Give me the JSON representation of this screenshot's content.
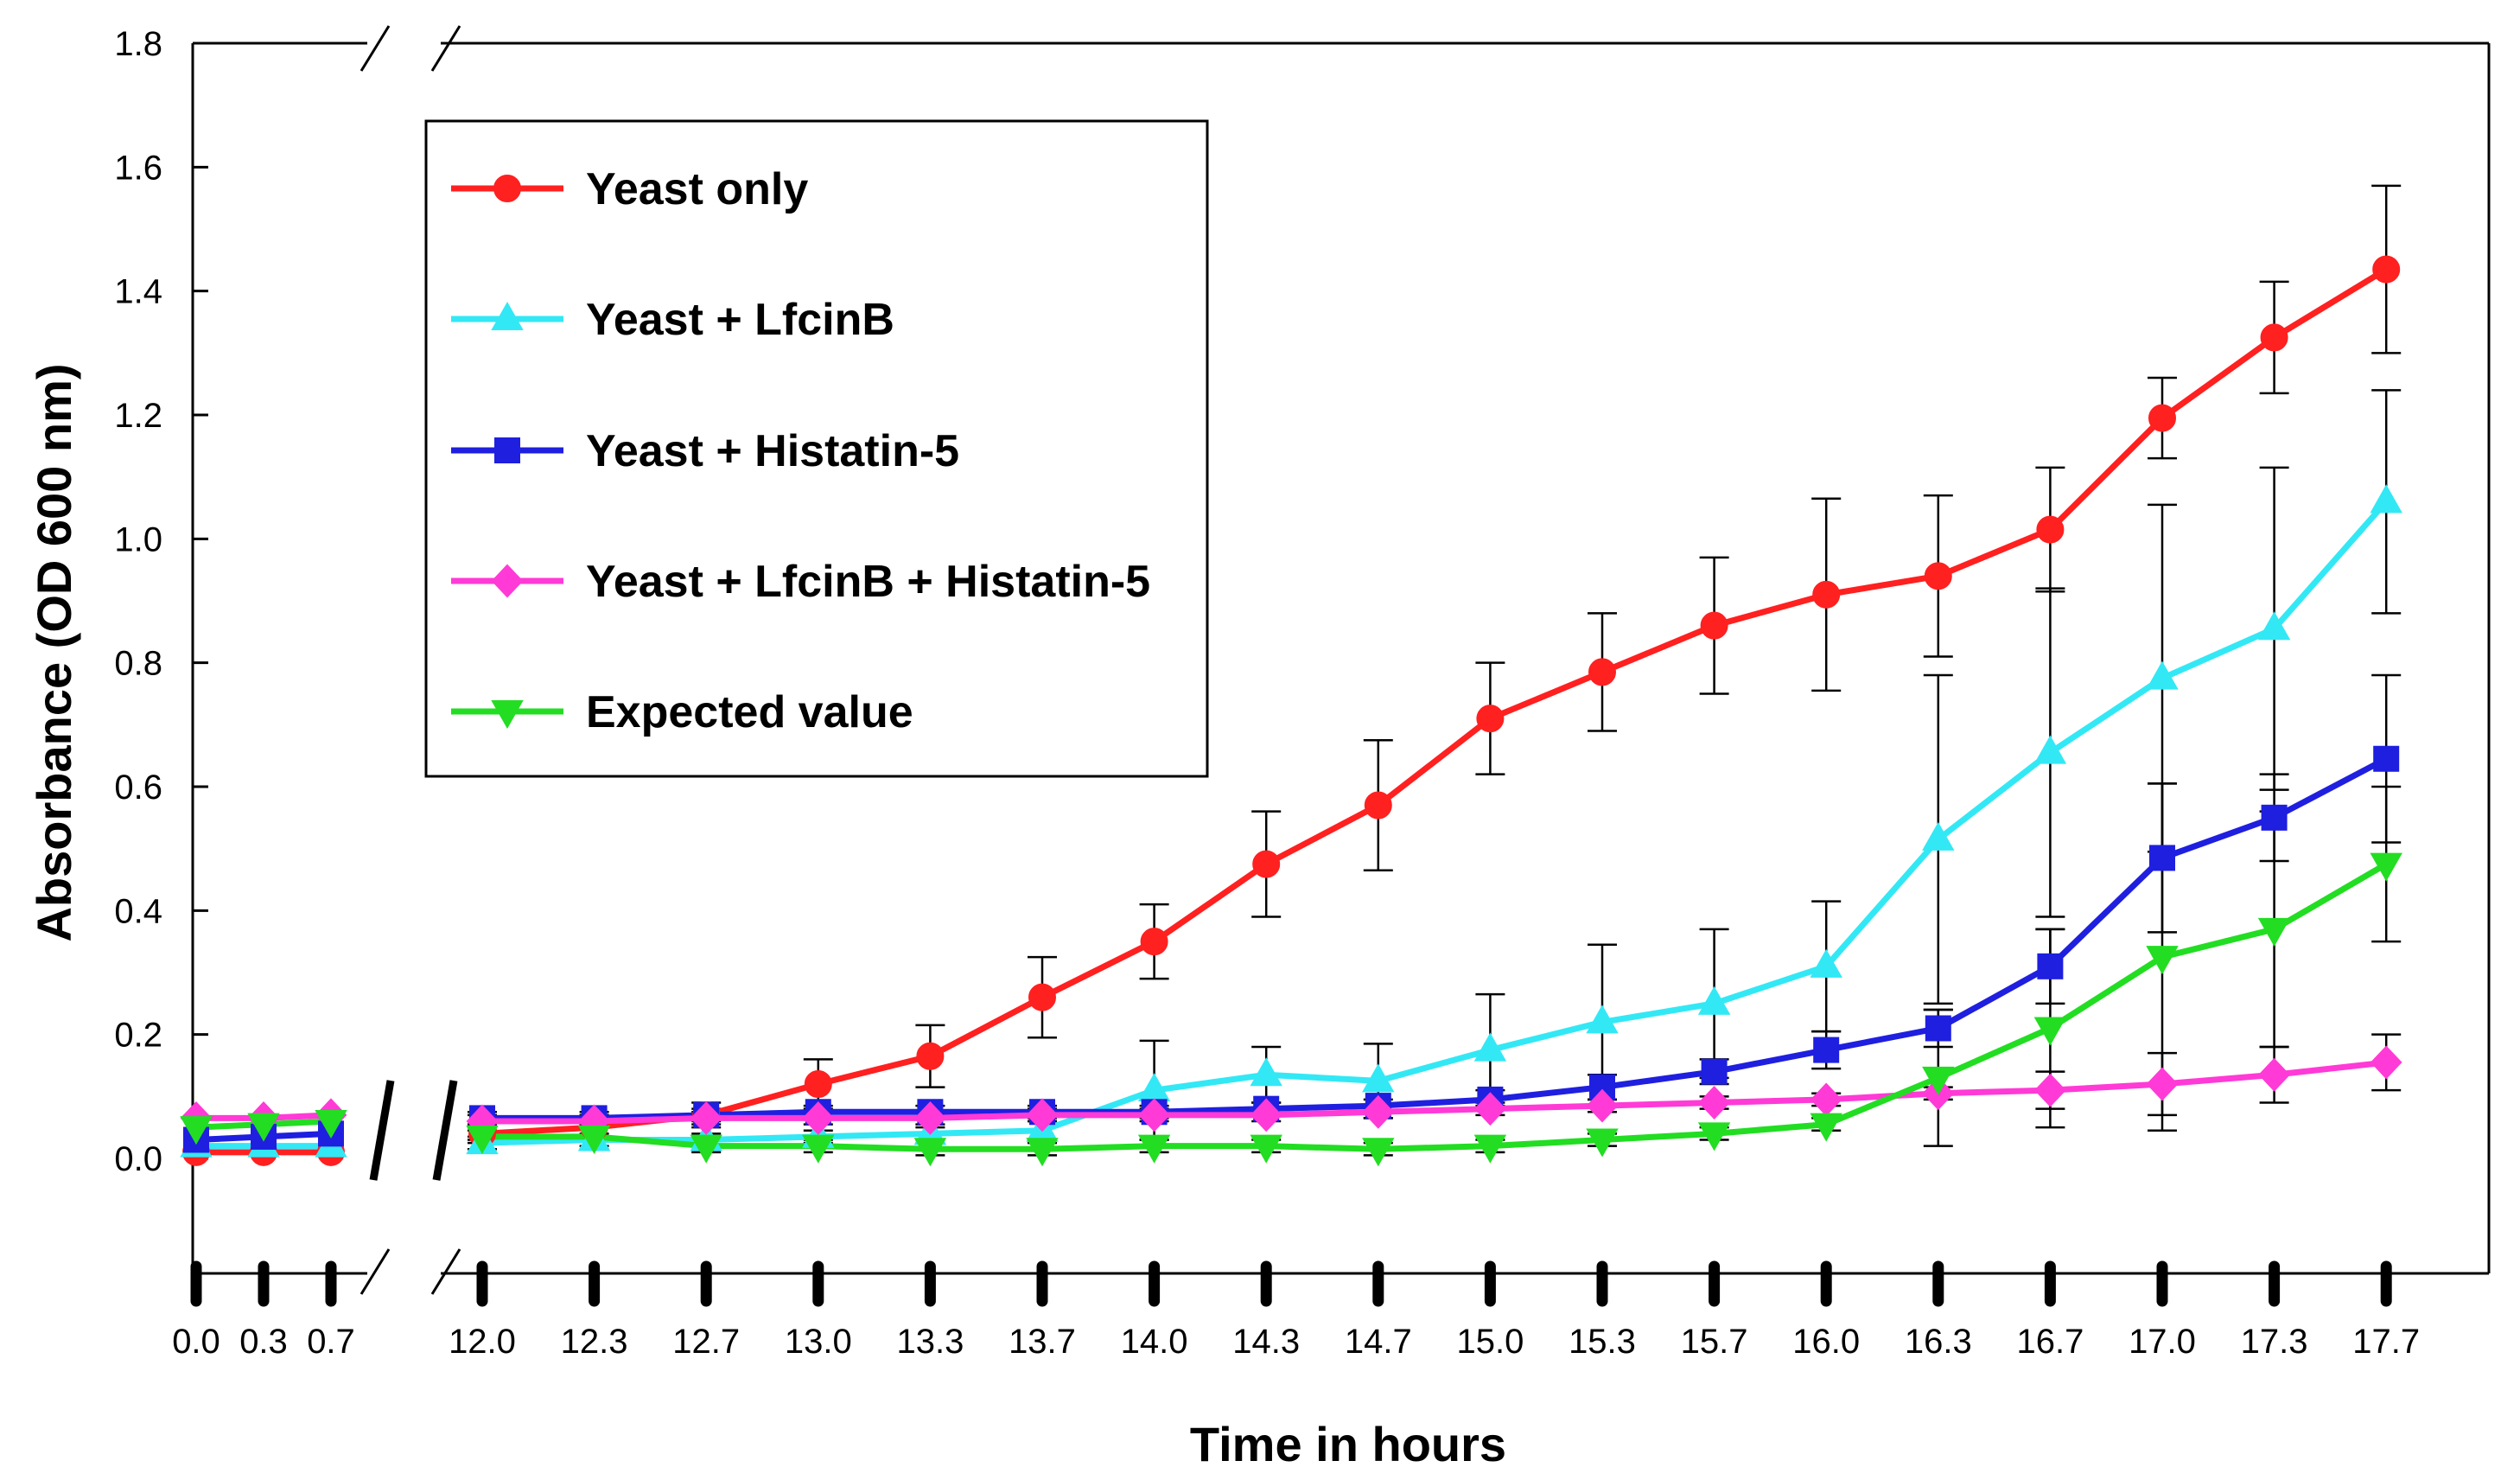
{
  "chart_data": {
    "type": "line",
    "title": "",
    "xlabel": "Time in hours",
    "ylabel": "Absorbance (OD 600 nm)",
    "ylim": [
      -0.2,
      1.8
    ],
    "y_ticks": [
      "0.0",
      "0.2",
      "0.4",
      "0.6",
      "0.8",
      "1.0",
      "1.2",
      "1.4",
      "1.6",
      "1.8"
    ],
    "categories": [
      "0.0",
      "0.3",
      "0.7",
      "12.0",
      "12.3",
      "12.7",
      "13.0",
      "13.3",
      "13.7",
      "14.0",
      "14.3",
      "14.7",
      "15.0",
      "15.3",
      "15.7",
      "16.0",
      "16.3",
      "16.7",
      "17.0",
      "17.3",
      "17.7"
    ],
    "axis_break": "between 0.7 and 12.0",
    "legend_position": "top-left",
    "series": [
      {
        "name": "Yeast only",
        "color": "#ff2020",
        "marker": "circle",
        "values": [
          0.01,
          0.01,
          0.01,
          0.04,
          0.05,
          0.07,
          0.12,
          0.165,
          0.26,
          0.35,
          0.475,
          0.57,
          0.71,
          0.785,
          0.86,
          0.91,
          0.94,
          1.015,
          1.195,
          1.325,
          1.435
        ],
        "errors": [
          0.005,
          0.005,
          0.005,
          0.01,
          0.02,
          0.02,
          0.04,
          0.05,
          0.065,
          0.06,
          0.085,
          0.105,
          0.09,
          0.095,
          0.11,
          0.155,
          0.13,
          0.1,
          0.065,
          0.09,
          0.135
        ]
      },
      {
        "name": "Yeast + LfcinB",
        "color": "#33e8f5",
        "marker": "triangle-up",
        "values": [
          0.02,
          0.02,
          0.02,
          0.025,
          0.03,
          0.03,
          0.035,
          0.04,
          0.045,
          0.11,
          0.135,
          0.125,
          0.175,
          0.22,
          0.25,
          0.31,
          0.515,
          0.655,
          0.775,
          0.855,
          1.06
        ],
        "errors": [
          0.005,
          0.005,
          0.005,
          0.01,
          0.01,
          0.01,
          0.01,
          0.01,
          0.015,
          0.08,
          0.045,
          0.06,
          0.09,
          0.125,
          0.12,
          0.105,
          0.265,
          0.265,
          0.28,
          0.26,
          0.18
        ]
      },
      {
        "name": "Yeast + Histatin-5",
        "color": "#1f1fe0",
        "marker": "square",
        "values": [
          0.03,
          0.035,
          0.04,
          0.065,
          0.065,
          0.07,
          0.075,
          0.075,
          0.075,
          0.075,
          0.08,
          0.085,
          0.095,
          0.115,
          0.14,
          0.175,
          0.21,
          0.31,
          0.485,
          0.55,
          0.645
        ],
        "errors": [
          0.005,
          0.005,
          0.005,
          0.01,
          0.01,
          0.01,
          0.01,
          0.01,
          0.01,
          0.01,
          0.01,
          0.01,
          0.015,
          0.02,
          0.02,
          0.03,
          0.03,
          0.06,
          0.12,
          0.07,
          0.135
        ]
      },
      {
        "name": "Yeast + LfcinB + Histatin-5",
        "color": "#ff3ad6",
        "marker": "diamond",
        "values": [
          0.065,
          0.065,
          0.07,
          0.06,
          0.06,
          0.065,
          0.065,
          0.065,
          0.07,
          0.07,
          0.07,
          0.075,
          0.08,
          0.085,
          0.09,
          0.095,
          0.105,
          0.11,
          0.12,
          0.135,
          0.155
        ],
        "errors": [
          0.005,
          0.005,
          0.005,
          0.01,
          0.01,
          0.01,
          0.01,
          0.01,
          0.01,
          0.01,
          0.01,
          0.01,
          0.01,
          0.01,
          0.01,
          0.01,
          0.01,
          0.03,
          0.05,
          0.045,
          0.045
        ]
      },
      {
        "name": "Expected value",
        "color": "#22dd22",
        "marker": "triangle-down",
        "values": [
          0.05,
          0.055,
          0.06,
          0.035,
          0.035,
          0.02,
          0.02,
          0.015,
          0.015,
          0.02,
          0.02,
          0.015,
          0.02,
          0.03,
          0.04,
          0.055,
          0.13,
          0.21,
          0.325,
          0.37,
          0.475
        ],
        "errors": [
          0.005,
          0.005,
          0.005,
          0.01,
          0.02,
          0.01,
          0.01,
          0.01,
          0.01,
          0.01,
          0.01,
          0.01,
          0.01,
          0.01,
          0.01,
          0.01,
          0.11,
          0.16,
          0.28,
          0.19,
          0.125
        ]
      }
    ]
  }
}
